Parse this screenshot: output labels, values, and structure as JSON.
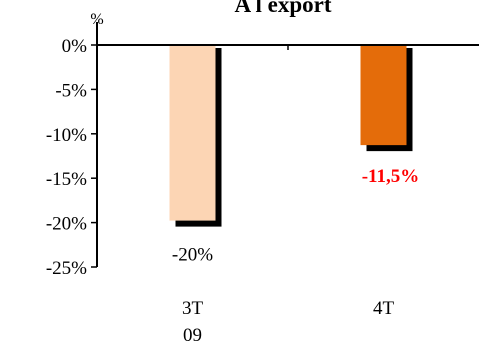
{
  "chart_data": {
    "type": "bar",
    "title": "A l export",
    "ylabel": "%",
    "xlabel": "",
    "categories": [
      "3T 09",
      "4T"
    ],
    "values": [
      -20,
      -11.5
    ],
    "data_labels": [
      "-20%",
      "-11,5%"
    ],
    "ylim": [
      -25,
      0
    ],
    "yticks": [
      0,
      -5,
      -10,
      -15,
      -20,
      -25
    ],
    "ytick_labels": [
      "0%",
      "-5%",
      "-10%",
      "-15%",
      "-20%",
      "-25%"
    ],
    "grid": false,
    "legend": "none",
    "colors": {
      "bar_1": "#fcd5b4",
      "bar_2": "#e46c0a",
      "shadow": "#000000",
      "label_1": "#000000",
      "label_2": "#ff0000"
    }
  }
}
